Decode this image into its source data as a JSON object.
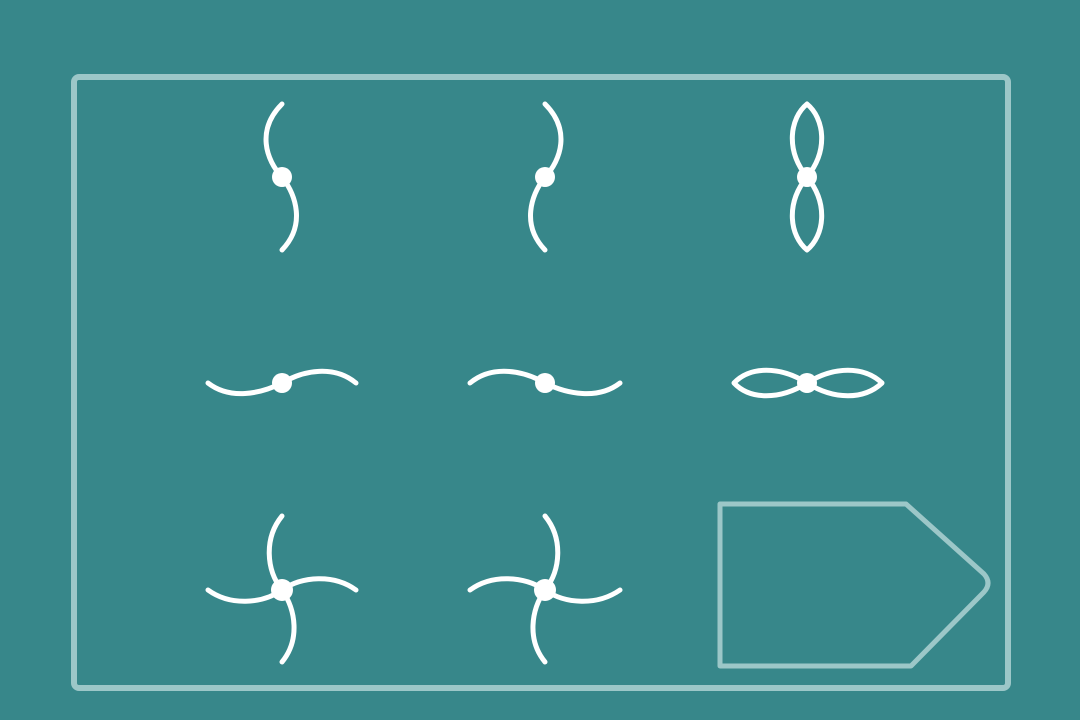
{
  "puzzle": {
    "kind": "3x3 visual analogy matrix",
    "colors": {
      "background": "#37878a",
      "frame": "#9cc7c8",
      "figure": "#ffffff"
    },
    "cells": [
      {
        "row": 1,
        "col": 1,
        "figure": "vertical-s-curve-icon"
      },
      {
        "row": 1,
        "col": 2,
        "figure": "vertical-mirrored-s-curve-icon"
      },
      {
        "row": 1,
        "col": 3,
        "figure": "vertical-figure-eight-icon"
      },
      {
        "row": 2,
        "col": 1,
        "figure": "horizontal-s-curve-icon"
      },
      {
        "row": 2,
        "col": 2,
        "figure": "horizontal-mirrored-s-curve-icon"
      },
      {
        "row": 2,
        "col": 3,
        "figure": "horizontal-figure-eight-icon"
      },
      {
        "row": 3,
        "col": 1,
        "figure": "pinwheel-icon"
      },
      {
        "row": 3,
        "col": 2,
        "figure": "mirrored-pinwheel-icon"
      },
      {
        "row": 3,
        "col": 3,
        "figure": "answer-slot-arrow-icon"
      }
    ]
  }
}
